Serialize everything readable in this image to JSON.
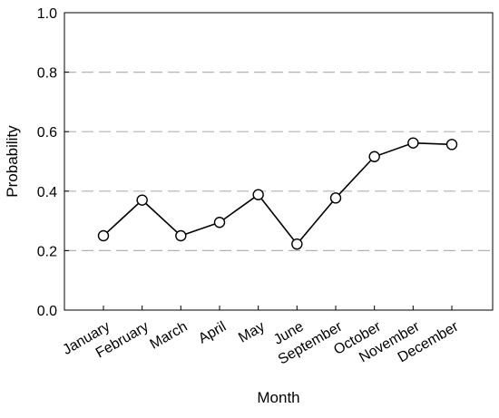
{
  "chart_data": {
    "type": "line",
    "title": "",
    "xlabel": "Month",
    "ylabel": "Probability",
    "categories": [
      "January",
      "February",
      "March",
      "April",
      "May",
      "June",
      "September",
      "October",
      "November",
      "December"
    ],
    "series": [
      {
        "values": [
          0.25,
          0.37,
          0.25,
          0.295,
          0.388,
          0.222,
          0.377,
          0.516,
          0.562,
          0.557
        ]
      }
    ],
    "ylim": [
      0,
      1.0
    ],
    "yticks": [
      "0.0",
      "0.2",
      "0.4",
      "0.6",
      "0.8",
      "1.0"
    ],
    "ytick_values": [
      0,
      0.2,
      0.4,
      0.6,
      0.8,
      1.0
    ],
    "grid": "horizontal dashed",
    "marker": "open-circle",
    "colors": {
      "line": "#000000",
      "grid": "#b3b3b3"
    }
  }
}
